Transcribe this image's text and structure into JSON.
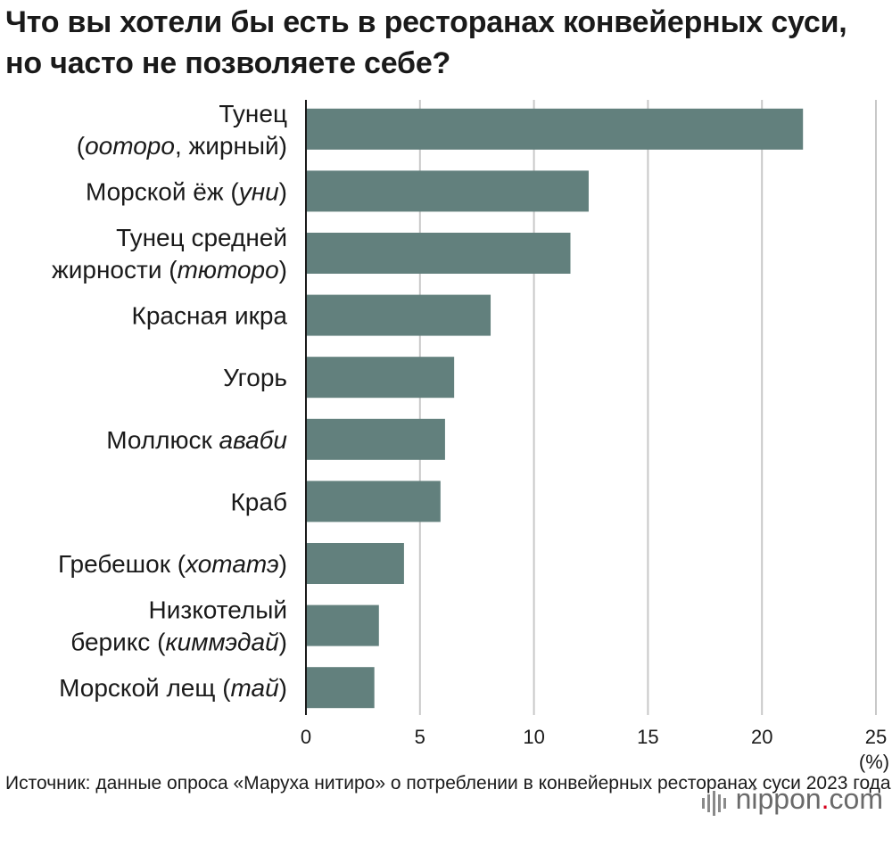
{
  "title": "Что вы хотели бы есть в ресторанах конвейерных суси, но часто не позволяете себе?",
  "source": "Источник: данные опроса «Маруха нитиро» о потреблении в конвейерных ресторанах суси 2023 года",
  "brand": {
    "name": "nippon",
    "dot": ".",
    "tld": "com"
  },
  "colors": {
    "bar": "#62807d",
    "grid": "#c8c8c8",
    "axis": "#1a1a1a",
    "text": "#1a1a1a"
  },
  "chart_data": {
    "type": "bar",
    "orientation": "horizontal",
    "categories": [
      [
        {
          "t": "Тунец",
          "i": false
        },
        {
          "t": "(",
          "i": false
        },
        {
          "t": "ooторо",
          "i": true
        },
        {
          "t": ", жирный)",
          "i": false
        }
      ],
      [
        {
          "t": "Морской ёж (",
          "i": false
        },
        {
          "t": "уни",
          "i": true
        },
        {
          "t": ")",
          "i": false
        }
      ],
      [
        {
          "t": "Тунец средней",
          "i": false
        },
        {
          "t": "жирности (",
          "i": false
        },
        {
          "t": "тюторо",
          "i": true
        },
        {
          "t": ")",
          "i": false
        }
      ],
      [
        {
          "t": "Красная икра",
          "i": false
        }
      ],
      [
        {
          "t": "Угорь",
          "i": false
        }
      ],
      [
        {
          "t": "Моллюск ",
          "i": false
        },
        {
          "t": "аваби",
          "i": true
        }
      ],
      [
        {
          "t": "Краб",
          "i": false
        }
      ],
      [
        {
          "t": "Гребешок (",
          "i": false
        },
        {
          "t": "хотатэ",
          "i": true
        },
        {
          "t": ")",
          "i": false
        }
      ],
      [
        {
          "t": "Низкотелый",
          "i": false
        },
        {
          "t": "берикс (",
          "i": false
        },
        {
          "t": "киммэдай",
          "i": true
        },
        {
          "t": ")",
          "i": false
        }
      ],
      [
        {
          "t": "Морской лещ (",
          "i": false
        },
        {
          "t": "тай",
          "i": true
        },
        {
          "t": ")",
          "i": false
        }
      ]
    ],
    "category_lines": [
      [
        "Тунец",
        "(ooторо, жирный)"
      ],
      [
        "Морской ёж (уни)"
      ],
      [
        "Тунец средней",
        "жирности (тюторо)"
      ],
      [
        "Красная икра"
      ],
      [
        "Угорь"
      ],
      [
        "Моллюск аваби"
      ],
      [
        "Краб"
      ],
      [
        "Гребешок (хотатэ)"
      ],
      [
        "Низкотелый",
        "берикс (киммэдай)"
      ],
      [
        "Морской лещ (тай)"
      ]
    ],
    "values": [
      21.8,
      12.4,
      11.6,
      8.1,
      6.5,
      6.1,
      5.9,
      4.3,
      3.2,
      3.0
    ],
    "xlim": [
      0,
      25
    ],
    "xticks": [
      0,
      5,
      10,
      15,
      20,
      25
    ],
    "unit": "(%)",
    "grid": true
  }
}
